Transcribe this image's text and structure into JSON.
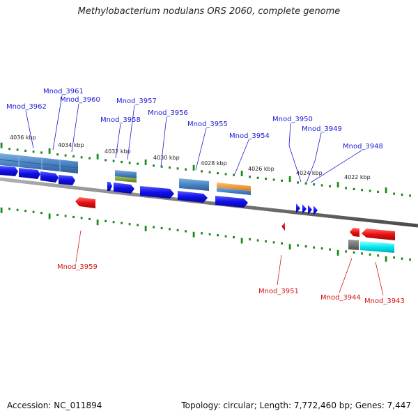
{
  "title": "Methylobacterium nodulans ORS 2060, complete genome",
  "footer": {
    "accession": "Accession: NC_011894",
    "summary": "Topology: circular; Length: 7,772,460 bp; Genes: 7,447"
  },
  "kbp_labels": [
    "4036 kbp",
    "4034 kbp",
    "4032 kbp",
    "4030 kbp",
    "4028 kbp",
    "4026 kbp",
    "4024 kbp",
    "4022 kbp"
  ],
  "gene_labels_top": [
    "Mnod_3961",
    "Mnod_3962",
    "Mnod_3960",
    "Mnod_3957",
    "Mnod_3958",
    "Mnod_3956",
    "Mnod_3955",
    "Mnod_3954",
    "Mnod_3950",
    "Mnod_3949",
    "Mnod_3948"
  ],
  "gene_labels_bottom": [
    "Mnod_3959",
    "Mnod_3951",
    "Mnod_3944",
    "Mnod_3943"
  ],
  "colors": {
    "forward_cds": "#1010e8",
    "reverse_cds": "#e81010",
    "steel": "#4a84c4",
    "orange": "#f08c1c",
    "olive": "#7a9a30",
    "cyan": "#00e8f0",
    "gray": "#6a6a6a",
    "tick": "#1a8a1a"
  }
}
